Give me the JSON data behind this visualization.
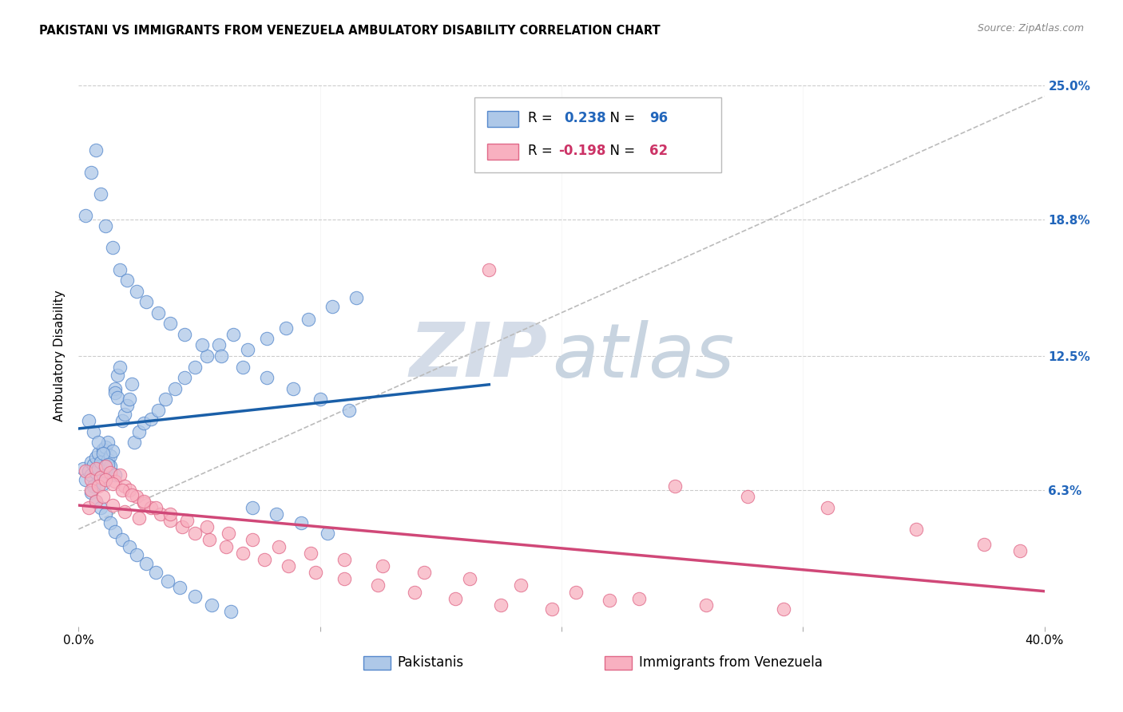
{
  "title": "PAKISTANI VS IMMIGRANTS FROM VENEZUELA AMBULATORY DISABILITY CORRELATION CHART",
  "source": "Source: ZipAtlas.com",
  "ylabel": "Ambulatory Disability",
  "xlabel_pakistanis": "Pakistanis",
  "xlabel_venezuela": "Immigrants from Venezuela",
  "xlim": [
    0.0,
    0.4
  ],
  "ylim": [
    0.0,
    0.25
  ],
  "ytick_labels_right": [
    "25.0%",
    "18.8%",
    "12.5%",
    "6.3%"
  ],
  "ytick_vals_right": [
    0.25,
    0.188,
    0.125,
    0.063
  ],
  "pakistanis_R": 0.238,
  "pakistanis_N": 96,
  "venezuela_R": -0.198,
  "venezuela_N": 62,
  "blue_fill": "#aec8e8",
  "blue_edge": "#5588cc",
  "pink_fill": "#f8b0c0",
  "pink_edge": "#e06888",
  "blue_line_color": "#1a5fa8",
  "pink_line_color": "#d04878",
  "dashed_line_color": "#bbbbbb",
  "background_color": "#ffffff",
  "grid_color": "#cccccc",
  "blue_scatter_x": [
    0.002,
    0.003,
    0.004,
    0.005,
    0.005,
    0.006,
    0.006,
    0.007,
    0.007,
    0.008,
    0.008,
    0.009,
    0.009,
    0.01,
    0.01,
    0.011,
    0.011,
    0.012,
    0.012,
    0.013,
    0.013,
    0.014,
    0.015,
    0.015,
    0.016,
    0.016,
    0.017,
    0.018,
    0.019,
    0.02,
    0.021,
    0.022,
    0.023,
    0.025,
    0.027,
    0.03,
    0.033,
    0.036,
    0.04,
    0.044,
    0.048,
    0.053,
    0.058,
    0.064,
    0.07,
    0.078,
    0.086,
    0.095,
    0.105,
    0.115,
    0.005,
    0.007,
    0.009,
    0.011,
    0.013,
    0.015,
    0.018,
    0.021,
    0.024,
    0.028,
    0.032,
    0.037,
    0.042,
    0.048,
    0.055,
    0.063,
    0.072,
    0.082,
    0.092,
    0.103,
    0.003,
    0.005,
    0.007,
    0.009,
    0.011,
    0.014,
    0.017,
    0.02,
    0.024,
    0.028,
    0.033,
    0.038,
    0.044,
    0.051,
    0.059,
    0.068,
    0.078,
    0.089,
    0.1,
    0.112,
    0.004,
    0.006,
    0.008,
    0.01,
    0.012,
    0.015
  ],
  "blue_scatter_y": [
    0.073,
    0.068,
    0.072,
    0.07,
    0.076,
    0.065,
    0.075,
    0.071,
    0.078,
    0.073,
    0.08,
    0.069,
    0.076,
    0.082,
    0.066,
    0.083,
    0.072,
    0.077,
    0.085,
    0.079,
    0.074,
    0.081,
    0.11,
    0.108,
    0.116,
    0.106,
    0.12,
    0.095,
    0.098,
    0.102,
    0.105,
    0.112,
    0.085,
    0.09,
    0.094,
    0.096,
    0.1,
    0.105,
    0.11,
    0.115,
    0.12,
    0.125,
    0.13,
    0.135,
    0.128,
    0.133,
    0.138,
    0.142,
    0.148,
    0.152,
    0.062,
    0.058,
    0.055,
    0.052,
    0.048,
    0.044,
    0.04,
    0.037,
    0.033,
    0.029,
    0.025,
    0.021,
    0.018,
    0.014,
    0.01,
    0.007,
    0.055,
    0.052,
    0.048,
    0.043,
    0.19,
    0.21,
    0.22,
    0.2,
    0.185,
    0.175,
    0.165,
    0.16,
    0.155,
    0.15,
    0.145,
    0.14,
    0.135,
    0.13,
    0.125,
    0.12,
    0.115,
    0.11,
    0.105,
    0.1,
    0.095,
    0.09,
    0.085,
    0.08,
    0.075,
    0.07
  ],
  "pink_scatter_x": [
    0.003,
    0.005,
    0.007,
    0.009,
    0.011,
    0.013,
    0.015,
    0.017,
    0.019,
    0.021,
    0.024,
    0.027,
    0.03,
    0.034,
    0.038,
    0.043,
    0.048,
    0.054,
    0.061,
    0.068,
    0.077,
    0.087,
    0.098,
    0.11,
    0.124,
    0.139,
    0.156,
    0.175,
    0.196,
    0.22,
    0.247,
    0.277,
    0.31,
    0.347,
    0.375,
    0.39,
    0.005,
    0.008,
    0.011,
    0.014,
    0.018,
    0.022,
    0.027,
    0.032,
    0.038,
    0.045,
    0.053,
    0.062,
    0.072,
    0.083,
    0.096,
    0.11,
    0.126,
    0.143,
    0.162,
    0.183,
    0.206,
    0.232,
    0.26,
    0.292,
    0.004,
    0.007,
    0.01,
    0.014,
    0.019,
    0.025,
    0.17
  ],
  "pink_scatter_y": [
    0.072,
    0.068,
    0.073,
    0.069,
    0.074,
    0.071,
    0.067,
    0.07,
    0.065,
    0.063,
    0.06,
    0.057,
    0.055,
    0.052,
    0.049,
    0.046,
    0.043,
    0.04,
    0.037,
    0.034,
    0.031,
    0.028,
    0.025,
    0.022,
    0.019,
    0.016,
    0.013,
    0.01,
    0.008,
    0.012,
    0.065,
    0.06,
    0.055,
    0.045,
    0.038,
    0.035,
    0.063,
    0.065,
    0.068,
    0.066,
    0.063,
    0.061,
    0.058,
    0.055,
    0.052,
    0.049,
    0.046,
    0.043,
    0.04,
    0.037,
    0.034,
    0.031,
    0.028,
    0.025,
    0.022,
    0.019,
    0.016,
    0.013,
    0.01,
    0.008,
    0.055,
    0.058,
    0.06,
    0.056,
    0.053,
    0.05,
    0.165
  ]
}
